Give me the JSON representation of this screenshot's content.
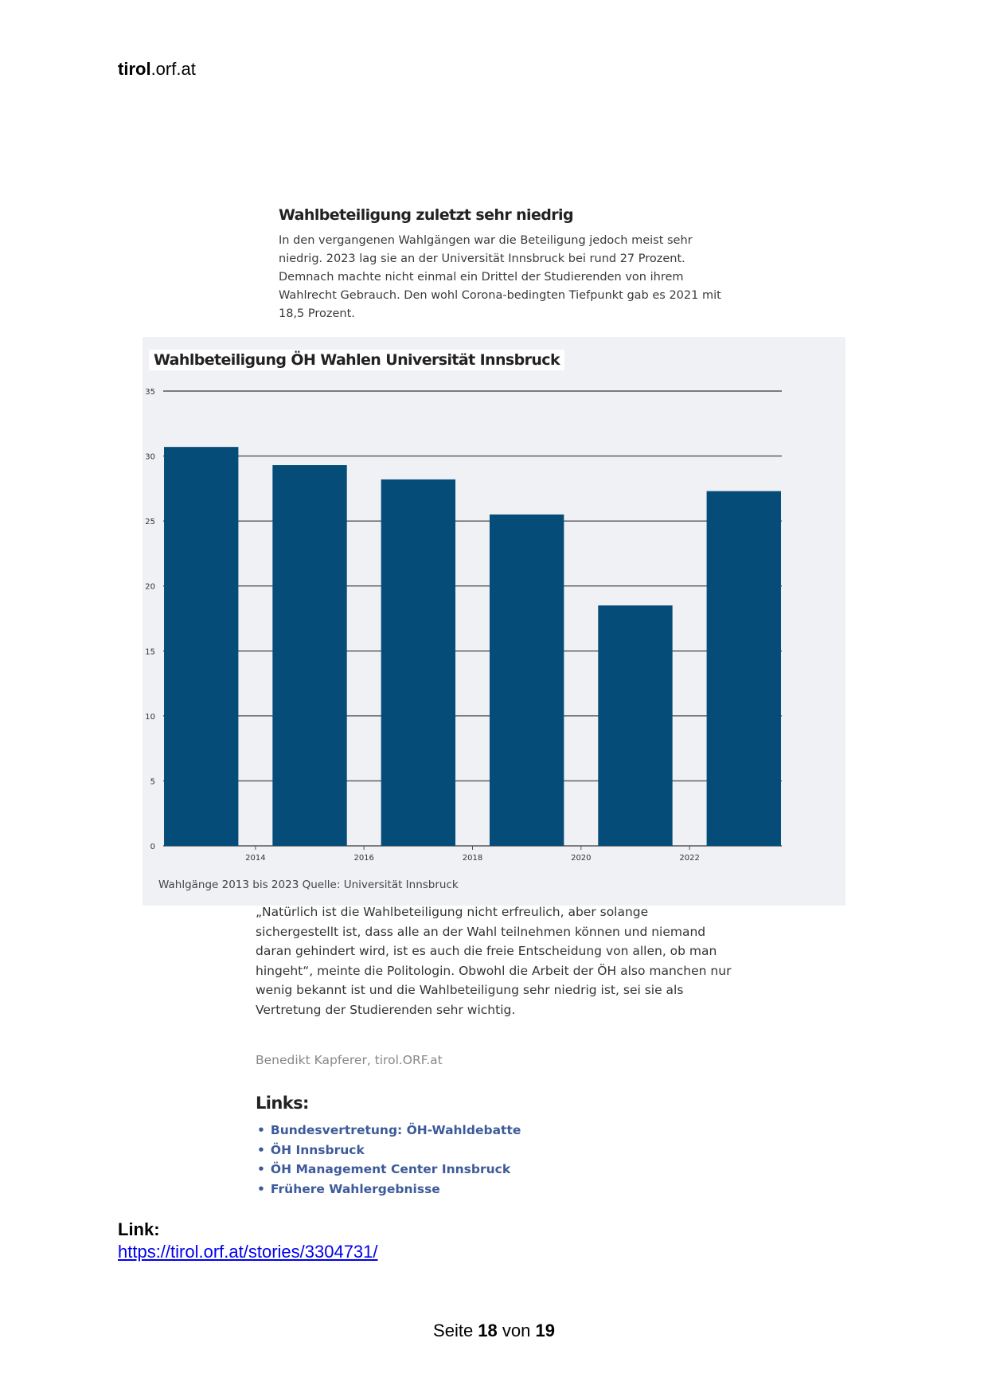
{
  "header": {
    "brand_bold": "tirol",
    "brand_rest": ".orf.at"
  },
  "article": {
    "heading": "Wahlbeteiligung zuletzt sehr niedrig",
    "paragraph": "In den vergangenen Wahlgängen war die Beteiligung jedoch meist sehr niedrig. 2023 lag sie an der Universität Innsbruck bei rund 27 Prozent. Demnach machte nicht einmal ein Drittel der Studierenden von ihrem Wahlrecht Gebrauch. Den wohl Corona-bedingten Tiefpunkt gab es 2021 mit 18,5 Prozent."
  },
  "chart_data": {
    "type": "bar",
    "title": "Wahlbeteiligung ÖH Wahlen Universität Innsbruck",
    "caption": "Wahlgänge 2013 bis 2023 Quelle: Universität Innsbruck",
    "x": [
      2013,
      2015,
      2017,
      2019,
      2021,
      2023
    ],
    "values": [
      30.7,
      29.3,
      28.2,
      25.5,
      18.5,
      27.3
    ],
    "ylim": [
      0,
      35
    ],
    "yticks": [
      0,
      5,
      10,
      15,
      20,
      25,
      30,
      35
    ],
    "xticks": [
      2014,
      2016,
      2018,
      2020,
      2022
    ],
    "xlim": [
      2012.3,
      2023.7
    ],
    "grid": true,
    "bar_color": "#054d78",
    "background": "#eff1f4"
  },
  "quote": "„Natürlich ist die Wahlbeteiligung nicht erfreulich, aber solange sichergestellt ist, dass alle an der Wahl teilnehmen können und niemand daran gehindert wird, ist es auch die freie Entscheidung von allen, ob man hingeht“, meinte die Politologin. Obwohl die Arbeit der ÖH also manchen nur wenig bekannt ist und die Wahlbeteiligung sehr niedrig ist, sei sie als Vertretung der Studierenden sehr wichtig.",
  "author": "Benedikt Kapferer, tirol.ORF.at",
  "links": {
    "heading": "Links:",
    "items": [
      "Bundesvertretung: ÖH-Wahldebatte",
      "ÖH Innsbruck",
      "ÖH Management Center Innsbruck",
      "Frühere Wahlergebnisse"
    ]
  },
  "source": {
    "label": "Link:",
    "url": "https://tirol.orf.at/stories/3304731/"
  },
  "footer": {
    "prefix": "Seite ",
    "page": "18",
    "mid": " von ",
    "total": "19"
  }
}
